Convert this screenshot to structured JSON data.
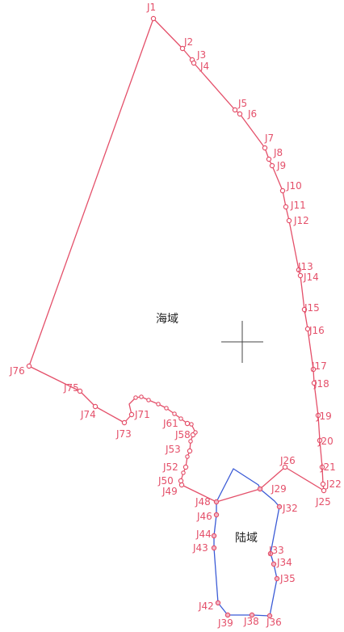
{
  "map": {
    "colors": {
      "sea_boundary": "#e4506a",
      "land_boundary": "#3b5bd6",
      "label": "#e4506a",
      "crosshair": "#444444",
      "region_text": "#222222"
    },
    "regions": {
      "sea": "海域",
      "land": "陆域"
    },
    "points": [
      "J1",
      "J2",
      "J3",
      "J4",
      "J5",
      "J6",
      "J7",
      "J8",
      "J9",
      "J10",
      "J11",
      "J12",
      "J13",
      "J14",
      "J15",
      "J16",
      "J17",
      "J18",
      "J19",
      "J20",
      "J21",
      "J22",
      "J25",
      "J26",
      "J29",
      "J32",
      "J33",
      "J34",
      "J35",
      "J36",
      "J38",
      "J39",
      "J42",
      "J43",
      "J44",
      "J46",
      "J48",
      "J49",
      "J50",
      "J52",
      "J53",
      "J58",
      "J61",
      "J71",
      "J73",
      "J74",
      "J75",
      "J76"
    ]
  }
}
